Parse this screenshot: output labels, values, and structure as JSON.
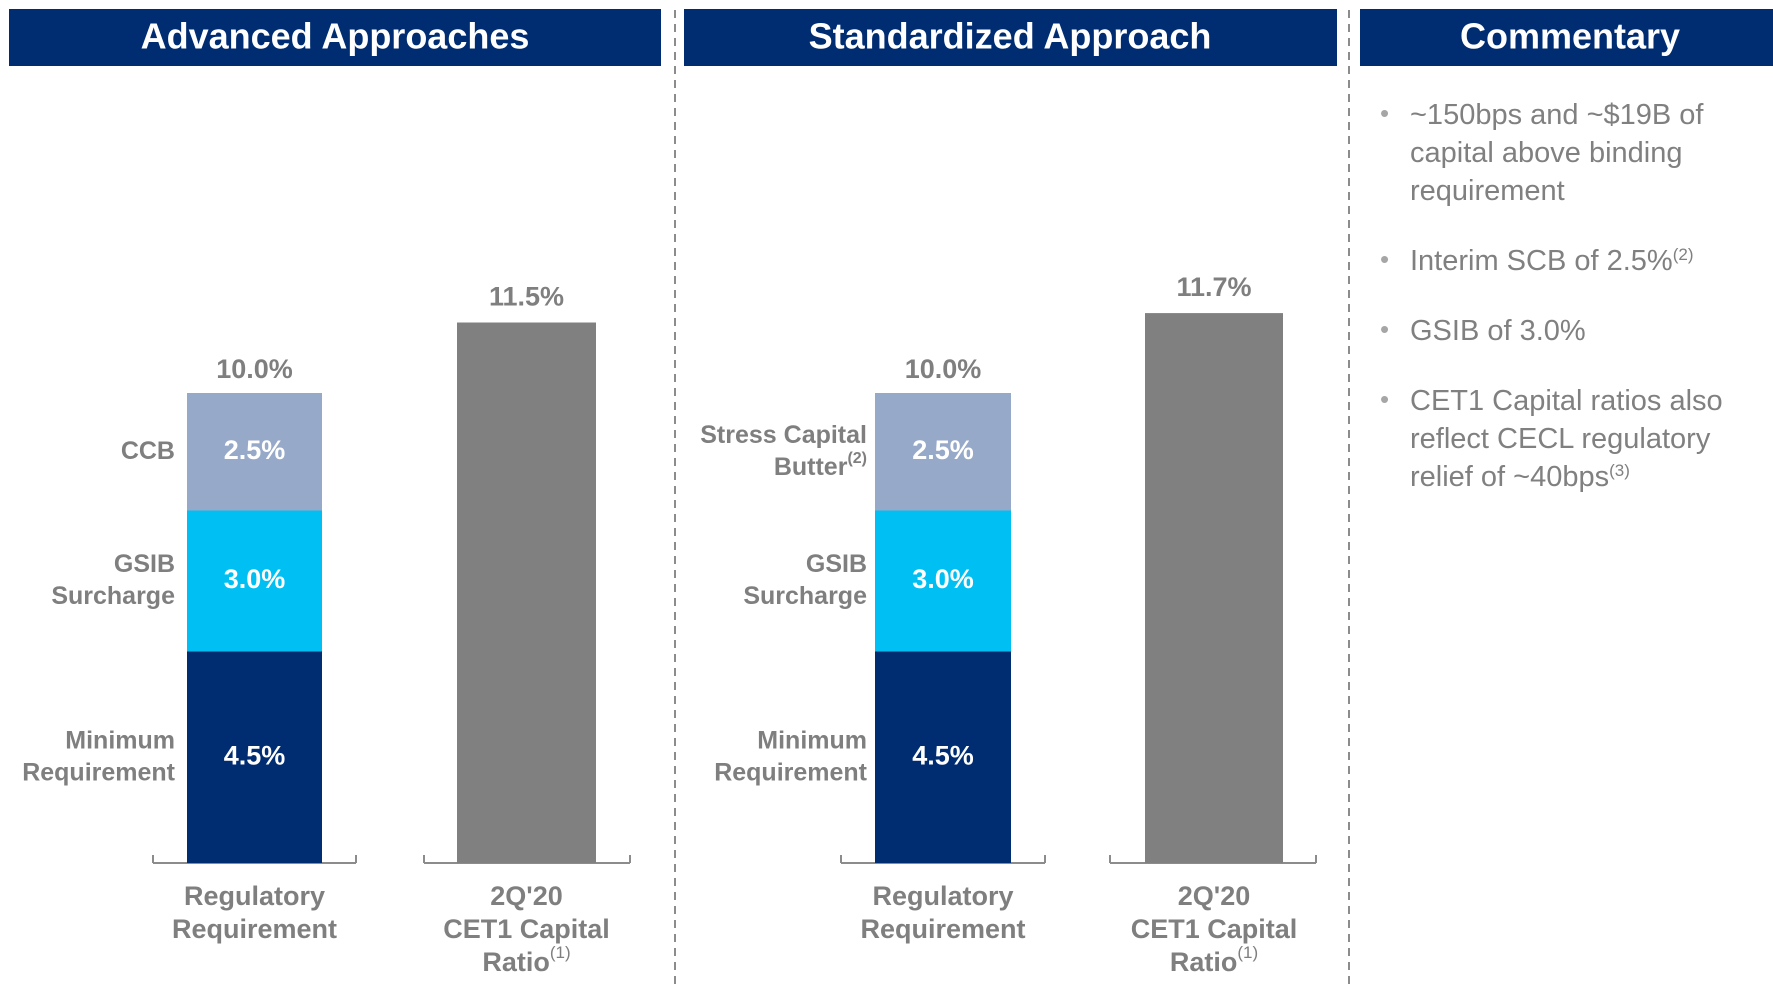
{
  "chart_data": [
    {
      "type": "stacked_bar",
      "title": "Advanced Approaches",
      "categories": [
        [
          "Regulatory",
          "Requirement"
        ],
        [
          "2Q'20",
          "CET1 Capital",
          "Ratio"
        ]
      ],
      "category_notes": [
        null,
        "(1)"
      ],
      "series": [
        {
          "name": "Minimum Requirement",
          "color": "#002d72",
          "values": [
            4.5,
            null
          ],
          "value_labels": [
            "4.5%",
            null
          ]
        },
        {
          "name": "GSIB Surcharge",
          "color": "#00c0f3",
          "values": [
            3.0,
            null
          ],
          "value_labels": [
            "3.0%",
            null
          ]
        },
        {
          "name": "CCB",
          "color": "#97a9c9",
          "values": [
            2.5,
            null
          ],
          "value_labels": [
            "2.5%",
            null
          ]
        },
        {
          "color": "#808080",
          "values": [
            null,
            11.5
          ],
          "value_labels": [
            null,
            "11.5%"
          ]
        }
      ],
      "totals": [
        10.0,
        null
      ],
      "total_labels": [
        "10.0%",
        null
      ]
    },
    {
      "type": "stacked_bar",
      "title": "Standardized Approach",
      "categories": [
        [
          "Regulatory",
          "Requirement"
        ],
        [
          "2Q'20",
          "CET1 Capital",
          "Ratio"
        ]
      ],
      "category_notes": [
        null,
        "(1)"
      ],
      "series": [
        {
          "name": "Minimum Requirement",
          "color": "#002d72",
          "values": [
            4.5,
            null
          ],
          "value_labels": [
            "4.5%",
            null
          ]
        },
        {
          "name": "GSIB Surcharge",
          "color": "#00c0f3",
          "values": [
            3.0,
            null
          ],
          "value_labels": [
            "3.0%",
            null
          ]
        },
        {
          "name": "Stress Capital Butter",
          "name_note": "(2)",
          "color": "#97a9c9",
          "values": [
            2.5,
            null
          ],
          "value_labels": [
            "2.5%",
            null
          ]
        },
        {
          "color": "#808080",
          "values": [
            null,
            11.7
          ],
          "value_labels": [
            null,
            "11.7%"
          ]
        }
      ],
      "totals": [
        10.0,
        null
      ],
      "total_labels": [
        "10.0%",
        null
      ]
    }
  ],
  "commentary": {
    "title": "Commentary",
    "bullets": [
      {
        "text": "~150bps and ~$19B of capital above binding requirement"
      },
      {
        "text": "Interim SCB of 2.5%",
        "note": "(2)"
      },
      {
        "text": "GSIB of 3.0%"
      },
      {
        "text": "CET1 Capital ratios also reflect CECL regulatory relief of ~40bps",
        "note": "(3)"
      }
    ]
  }
}
